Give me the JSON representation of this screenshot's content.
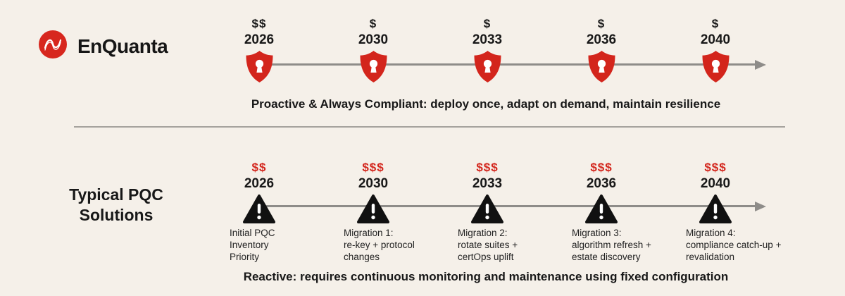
{
  "colors": {
    "background": "#f5f0e9",
    "accent_red": "#d3251c",
    "line_gray": "#8e8c89",
    "text_black": "#181818"
  },
  "logo": {
    "text": "EnQuanta",
    "icon": "wave-logo-icon"
  },
  "top_timeline": {
    "owner": "EnQuanta",
    "icon": "shield-lock-icon",
    "cost_color": "black",
    "milestones": [
      {
        "cost": "$$",
        "year": "2026"
      },
      {
        "cost": "$",
        "year": "2030"
      },
      {
        "cost": "$",
        "year": "2033"
      },
      {
        "cost": "$",
        "year": "2036"
      },
      {
        "cost": "$",
        "year": "2040"
      }
    ],
    "caption": "Proactive & Always Compliant: deploy once, adapt on demand, maintain resilience"
  },
  "bottom_timeline": {
    "owner_label": "Typical PQC\nSolutions",
    "icon": "warning-triangle-icon",
    "cost_color": "red",
    "milestones": [
      {
        "cost": "$$",
        "year": "2026",
        "description": "Initial PQC\nInventory\nPriority"
      },
      {
        "cost": "$$$",
        "year": "2030",
        "description": "Migration 1:\nre-key + protocol\nchanges"
      },
      {
        "cost": "$$$",
        "year": "2033",
        "description": "Migration 2:\nrotate suites +\ncertOps uplift"
      },
      {
        "cost": "$$$",
        "year": "2036",
        "description": "Migration 3:\nalgorithm refresh +\nestate discovery"
      },
      {
        "cost": "$$$",
        "year": "2040",
        "description": "Migration 4:\ncompliance catch-up +\nrevalidation"
      }
    ],
    "caption": "Reactive: requires continuous monitoring and maintenance using fixed configuration"
  },
  "layout_meta": {
    "milestone_years_shown": [
      "2026",
      "2030",
      "2033",
      "2036",
      "2040"
    ]
  }
}
